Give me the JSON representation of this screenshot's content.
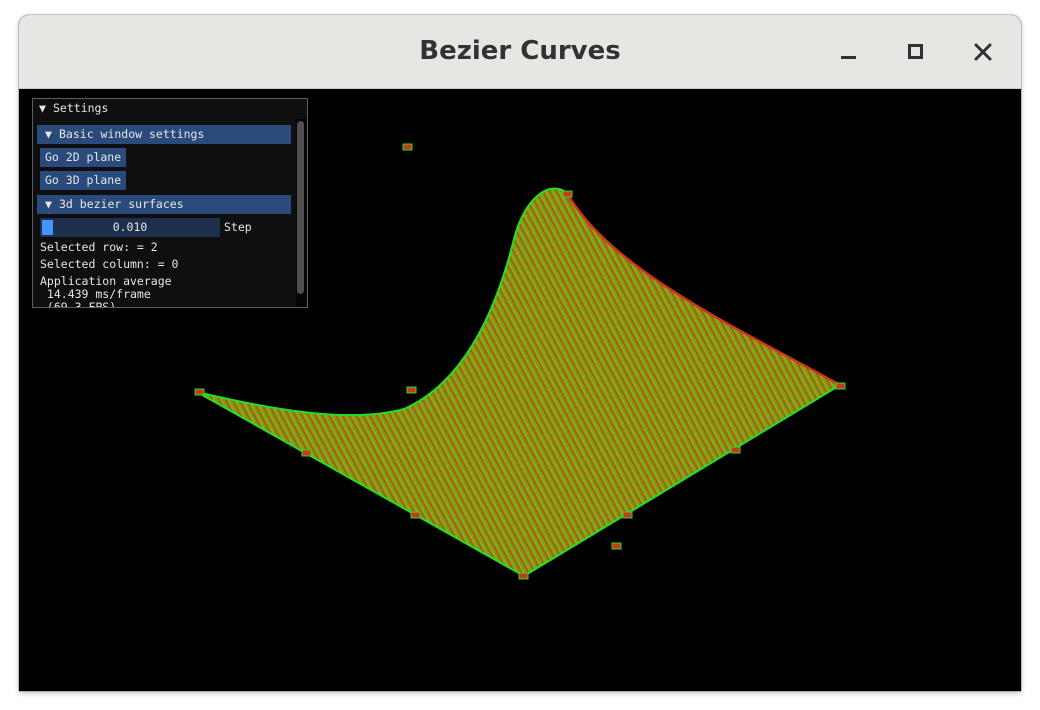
{
  "window": {
    "title": "Bezier Curves"
  },
  "settings": {
    "title": "Settings",
    "collapse_glyph": "▼",
    "basic_header": "Basic window settings",
    "go_2d_label": "Go 2D plane",
    "go_3d_label": "Go 3D plane",
    "surfaces_header": "3d bezier surfaces",
    "step_value": "0.010",
    "step_label": "Step",
    "selected_row": "Selected row: = 2",
    "selected_column": "Selected column: = 0",
    "app_average": "Application average",
    "ms_frame": " 14.439 ms/frame",
    "fps": " (69.3 FPS)"
  },
  "colors": {
    "surface_fill": "#7c9a12",
    "mesh_red": "#d0361a",
    "mesh_green": "#22e02a",
    "imgui_header": "#294a7a",
    "imgui_slider_grab": "#4296fa"
  },
  "icons": {
    "minimize": "minimize-icon",
    "maximize": "maximize-icon",
    "close": "close-icon"
  }
}
